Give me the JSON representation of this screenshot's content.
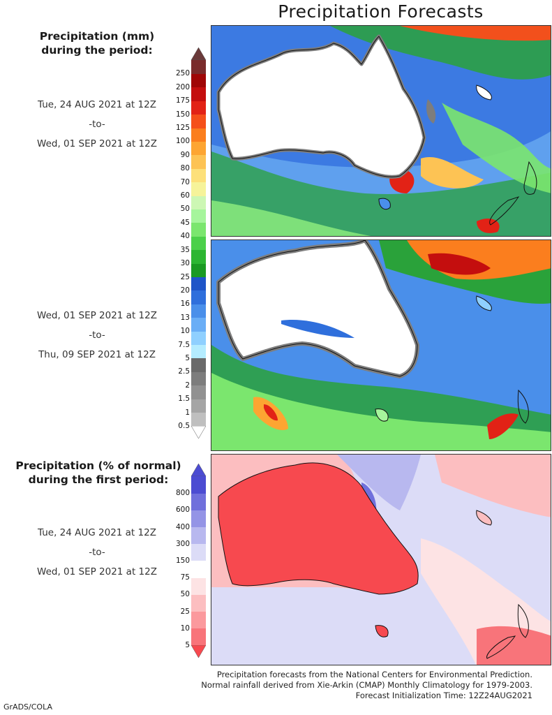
{
  "title": "Precipitation Forecasts",
  "legend_mm": {
    "heading_line1": "Precipitation (mm)",
    "heading_line2": "during the period:",
    "levels": [
      "0.5",
      "1",
      "1.5",
      "2",
      "2.5",
      "5",
      "7.5",
      "10",
      "13",
      "16",
      "20",
      "25",
      "30",
      "35",
      "40",
      "45",
      "50",
      "60",
      "70",
      "80",
      "90",
      "100",
      "125",
      "150",
      "175",
      "200",
      "250"
    ],
    "colors": [
      "#bfbfbf",
      "#a5a5a5",
      "#919191",
      "#7d7d7d",
      "#6a6a6a",
      "#b4ecff",
      "#8fd0ff",
      "#6aaef6",
      "#4a8fea",
      "#2f6fdc",
      "#1f55c8",
      "#1a9a22",
      "#2cb632",
      "#4cd04a",
      "#7be66e",
      "#a6f59c",
      "#cdf7b4",
      "#f6f39a",
      "#fde07a",
      "#fdc354",
      "#fda532",
      "#fb7e1e",
      "#f5501a",
      "#e22216",
      "#c40e0e",
      "#a00606",
      "#7a2b2b"
    ],
    "under_color": "#ffffff",
    "over_color": "#6a3a3a"
  },
  "legend_pct": {
    "heading_line1": "Precipitation (% of normal)",
    "heading_line2": "during the first period:",
    "levels": [
      "5",
      "10",
      "25",
      "50",
      "75",
      "150",
      "300",
      "400",
      "600",
      "800"
    ],
    "colors": [
      "#f7494f",
      "#f8747a",
      "#fb999d",
      "#fcbec0",
      "#fde3e4",
      "#ffffff",
      "#dcdcf7",
      "#b8b8ef",
      "#9494e6",
      "#7070dc",
      "#4c4cd2"
    ]
  },
  "periods": [
    {
      "start": "Tue, 24 AUG 2021 at 12Z",
      "sep": "-to-",
      "end": "Wed, 01 SEP 2021 at 12Z"
    },
    {
      "start": "Wed, 01 SEP 2021 at 12Z",
      "sep": "-to-",
      "end": "Thu, 09 SEP 2021 at 12Z"
    },
    {
      "start": "Tue, 24 AUG 2021 at 12Z",
      "sep": "-to-",
      "end": "Wed, 01 SEP 2021 at 12Z"
    }
  ],
  "footer": {
    "line1": "Precipitation forecasts from the National Centers for Environmental Prediction.",
    "line2": "Normal rainfall derived from Xie-Arkin (CMAP) Monthly Climatology for 1979-2003.",
    "line3": "Forecast Initialization Time: 12Z24AUG2021"
  },
  "credit": "GrADS/COLA"
}
